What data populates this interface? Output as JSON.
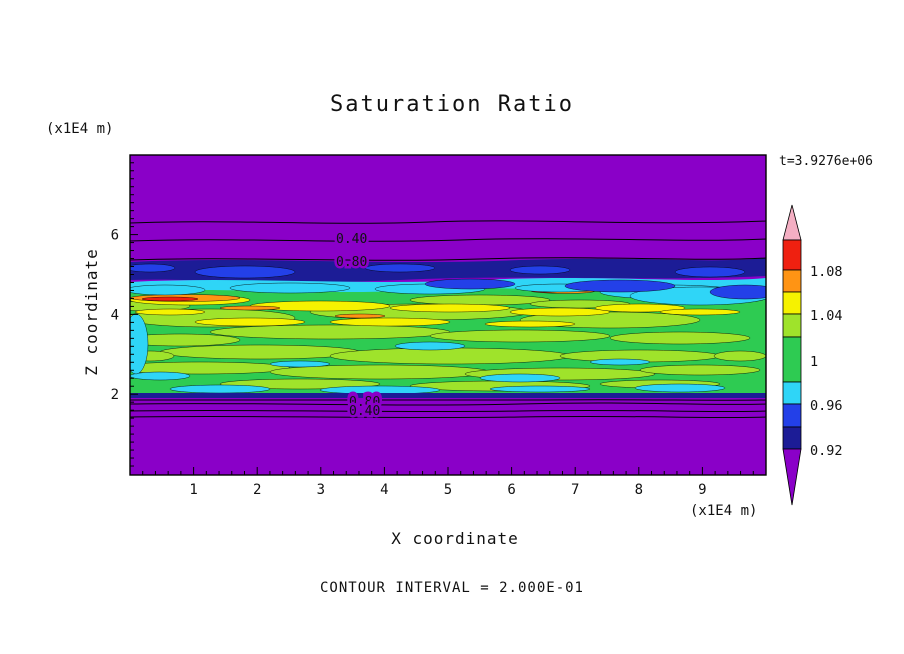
{
  "title": "Saturation Ratio",
  "timestamp": "t=3.9276e+06",
  "footer": "CONTOUR INTERVAL = 2.000E-01",
  "axes": {
    "x_label": "X coordinate",
    "z_label": "Z coordinate",
    "x_unit": "(x1E4 m)",
    "z_unit": "(x1E4 m)",
    "x_ticks": [
      "1",
      "2",
      "3",
      "4",
      "5",
      "6",
      "7",
      "8",
      "9"
    ],
    "z_ticks": [
      "2",
      "4",
      "6"
    ]
  },
  "colorbar": {
    "tick_labels": [
      "1.08",
      "1.04",
      "1",
      "0.96",
      "0.92"
    ],
    "segment_order_top_to_bottom": [
      "pink-arrow",
      "red",
      "orange",
      "yellow",
      "ygreen",
      "green",
      "cyan",
      "blue",
      "navy",
      "purple-arrow"
    ]
  },
  "contour_labels": {
    "top": [
      "0.40",
      "0.80"
    ],
    "bottom": [
      "0.20",
      "0.40",
      "0.80"
    ]
  },
  "palette": {
    "purple": "#8A00C8",
    "navy": "#1C1C96",
    "blue": "#2340E8",
    "cyan": "#2FD5F7",
    "green": "#2ECB52",
    "ygreen": "#9FE32B",
    "yellow": "#F6F200",
    "orange": "#FF9414",
    "red": "#EF2010",
    "pink": "#F4AFC3",
    "frame": "#000000"
  },
  "chart_data": {
    "type": "heatmap",
    "title": "Saturation Ratio",
    "xlabel": "X coordinate",
    "ylabel": "Z coordinate",
    "x_unit": "x1E4 m",
    "z_unit": "x1E4 m",
    "x_range": [
      0,
      10
    ],
    "z_range": [
      0,
      8
    ],
    "x_tick_values": [
      1,
      2,
      3,
      4,
      5,
      6,
      7,
      8,
      9
    ],
    "z_tick_values": [
      2,
      4,
      6
    ],
    "time": "t=3.9276e+06",
    "contour_interval": "2.000E-01",
    "colorbar_tick_values": [
      1.08,
      1.04,
      1.0,
      0.96,
      0.92
    ],
    "line_contour_values_top": [
      0.4,
      0.8
    ],
    "line_contour_values_bottom": [
      0.2,
      0.4,
      0.8
    ],
    "regions": [
      {
        "z_from": 5.4,
        "z_to": 8.0,
        "value": "low saturation (< 0.2), purple background; contours 0.40 and 0.80 near z=5.9 and z=5.4"
      },
      {
        "z_from": 4.9,
        "z_to": 5.4,
        "value": "0.90-0.96 navy/blue band"
      },
      {
        "z_from": 4.6,
        "z_to": 5.0,
        "value": "0.96-0.98 cyan band with blue patches"
      },
      {
        "z_from": 2.0,
        "z_to": 4.6,
        "value": "0.98-1.08 green / yellow-green band with yellow, orange and red streaks (saturation ~1)"
      },
      {
        "z_from": 0.0,
        "z_to": 2.0,
        "value": "low saturation (< 0.2), purple background; overlapping 0.20/0.40/0.80 contours just below z=2"
      }
    ],
    "legend_position": "right colorbar",
    "grid": false
  }
}
